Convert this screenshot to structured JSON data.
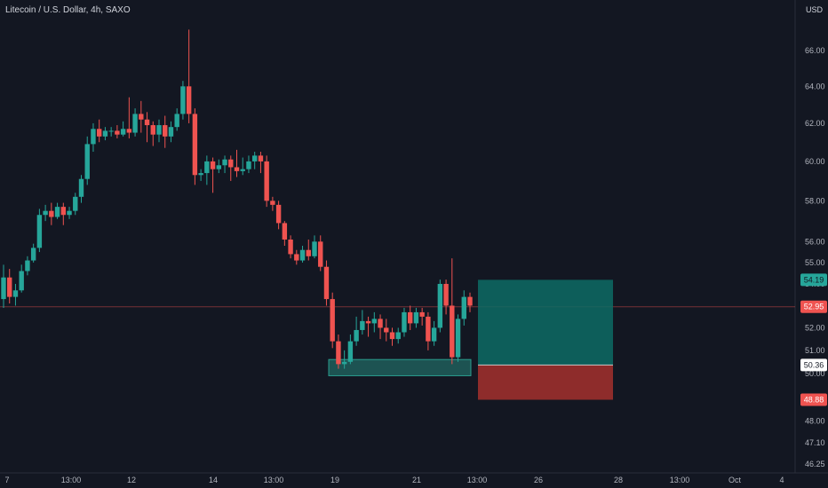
{
  "header": {
    "title": "Litecoin / U.S. Dollar, 4h, SAXO",
    "currency": "USD"
  },
  "colors": {
    "background": "#131722",
    "up": "#26a69a",
    "down": "#ef5350",
    "target": "#0d6b64",
    "stop": "#a5302d",
    "zone": "#2a9d8f"
  },
  "chart_data": {
    "type": "candlestick",
    "title": "Litecoin / U.S. Dollar, 4h, SAXO",
    "y_axis": {
      "scale": "log",
      "tick_labels": [
        "66.00",
        "64.00",
        "62.00",
        "60.00",
        "58.00",
        "56.00",
        "55.00",
        "54.00",
        "52.00",
        "51.00",
        "50.00",
        "48.00",
        "47.10",
        "46.25"
      ]
    },
    "x_axis": {
      "tick_labels": [
        "7",
        "13:00",
        "12",
        "14",
        "13:00",
        "19",
        "21",
        "13:00",
        "26",
        "28",
        "13:00",
        "Oct",
        "4"
      ]
    },
    "candles": [
      [
        53.3,
        54.3,
        52.9,
        54.9
      ],
      [
        54.3,
        53.4,
        53.1,
        54.7
      ],
      [
        53.4,
        53.7,
        53.0,
        54.0
      ],
      [
        53.7,
        54.6,
        53.6,
        54.9
      ],
      [
        54.6,
        55.1,
        54.4,
        55.3
      ],
      [
        55.1,
        55.7,
        55.0,
        55.9
      ],
      [
        55.7,
        57.3,
        55.5,
        57.6
      ],
      [
        57.3,
        57.5,
        57.0,
        57.8
      ],
      [
        57.5,
        57.2,
        56.8,
        57.9
      ],
      [
        57.2,
        57.7,
        57.1,
        57.9
      ],
      [
        57.7,
        57.3,
        56.8,
        57.9
      ],
      [
        57.3,
        57.5,
        57.1,
        57.7
      ],
      [
        57.5,
        58.2,
        57.3,
        58.4
      ],
      [
        58.2,
        59.1,
        57.9,
        59.3
      ],
      [
        59.1,
        60.9,
        58.8,
        61.3
      ],
      [
        60.9,
        61.7,
        60.5,
        62.0
      ],
      [
        61.7,
        61.3,
        61.0,
        62.2
      ],
      [
        61.3,
        61.6,
        61.1,
        61.8
      ],
      [
        61.6,
        61.6,
        61.3,
        61.8
      ],
      [
        61.6,
        61.4,
        61.2,
        61.9
      ],
      [
        61.4,
        61.7,
        61.3,
        62.1
      ],
      [
        61.7,
        61.5,
        61.2,
        63.4
      ],
      [
        61.5,
        62.5,
        61.3,
        62.8
      ],
      [
        62.5,
        62.2,
        61.5,
        63.2
      ],
      [
        62.2,
        61.9,
        61.0,
        62.6
      ],
      [
        61.9,
        61.4,
        60.8,
        62.1
      ],
      [
        61.4,
        61.9,
        61.0,
        62.2
      ],
      [
        61.9,
        61.3,
        60.7,
        62.4
      ],
      [
        61.3,
        61.8,
        61.0,
        62.1
      ],
      [
        61.8,
        62.5,
        61.6,
        62.8
      ],
      [
        62.5,
        64.0,
        62.2,
        64.3
      ],
      [
        64.0,
        62.5,
        62.0,
        67.2
      ],
      [
        62.5,
        59.3,
        58.8,
        62.8
      ],
      [
        59.3,
        59.4,
        59.0,
        59.6
      ],
      [
        59.4,
        60.0,
        58.8,
        60.3
      ],
      [
        60.0,
        59.6,
        58.4,
        60.2
      ],
      [
        59.6,
        59.8,
        59.4,
        60.1
      ],
      [
        59.8,
        60.1,
        59.4,
        60.3
      ],
      [
        60.1,
        59.7,
        59.0,
        60.3
      ],
      [
        59.7,
        59.5,
        59.2,
        60.6
      ],
      [
        59.5,
        59.6,
        59.3,
        60.2
      ],
      [
        59.6,
        60.0,
        59.4,
        60.3
      ],
      [
        60.0,
        60.3,
        59.6,
        60.5
      ],
      [
        60.3,
        60.0,
        59.4,
        60.5
      ],
      [
        60.0,
        58.0,
        57.7,
        60.3
      ],
      [
        58.0,
        57.8,
        57.5,
        58.2
      ],
      [
        57.8,
        56.9,
        56.6,
        58.0
      ],
      [
        56.9,
        56.1,
        55.8,
        57.0
      ],
      [
        56.1,
        55.4,
        55.2,
        56.3
      ],
      [
        55.4,
        55.1,
        54.9,
        55.6
      ],
      [
        55.1,
        55.6,
        55.0,
        55.8
      ],
      [
        55.6,
        55.3,
        55.1,
        56.1
      ],
      [
        55.3,
        56.0,
        55.2,
        56.3
      ],
      [
        56.0,
        54.8,
        54.6,
        56.3
      ],
      [
        54.8,
        53.3,
        53.0,
        55.1
      ],
      [
        53.3,
        51.4,
        51.1,
        53.6
      ],
      [
        51.4,
        50.4,
        50.2,
        51.7
      ],
      [
        50.4,
        50.5,
        50.2,
        51.0
      ],
      [
        50.5,
        51.4,
        50.4,
        51.7
      ],
      [
        51.4,
        51.9,
        51.2,
        52.5
      ],
      [
        51.9,
        52.3,
        51.7,
        52.8
      ],
      [
        52.3,
        52.2,
        51.6,
        52.5
      ],
      [
        52.2,
        52.4,
        51.8,
        52.7
      ],
      [
        52.4,
        52.0,
        51.5,
        52.6
      ],
      [
        52.0,
        51.8,
        51.4,
        52.4
      ],
      [
        51.8,
        51.5,
        51.2,
        52.0
      ],
      [
        51.5,
        51.8,
        51.3,
        52.0
      ],
      [
        51.8,
        52.7,
        51.6,
        52.9
      ],
      [
        52.7,
        52.2,
        51.9,
        53.0
      ],
      [
        52.2,
        52.7,
        52.0,
        52.9
      ],
      [
        52.7,
        52.5,
        52.1,
        52.9
      ],
      [
        52.5,
        51.4,
        51.0,
        52.7
      ],
      [
        51.4,
        52.0,
        51.2,
        52.3
      ],
      [
        52.0,
        54.0,
        51.8,
        54.2
      ],
      [
        54.0,
        53.0,
        52.6,
        54.2
      ],
      [
        53.0,
        50.7,
        50.4,
        55.2
      ],
      [
        50.7,
        52.4,
        50.5,
        52.6
      ],
      [
        52.4,
        53.4,
        52.1,
        53.7
      ],
      [
        53.4,
        53.0,
        52.7,
        53.6
      ]
    ],
    "horizontal_levels": [
      {
        "price": 52.95,
        "label": "52.95"
      }
    ],
    "demand_zone": {
      "top": 50.6,
      "bottom": 49.9
    },
    "position": {
      "target_price": 54.19,
      "entry_price": 50.36,
      "stop_price": 48.88,
      "target_label": "54.19",
      "entry_label": "50.36",
      "stop_label": "48.88"
    }
  }
}
